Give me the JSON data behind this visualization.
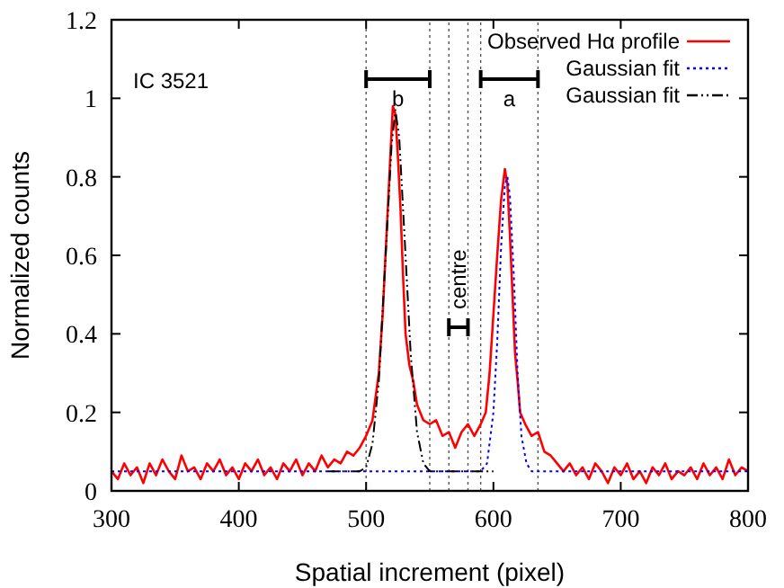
{
  "chart_data": {
    "type": "line",
    "xlabel": "Spatial increment (pixel)",
    "ylabel": "Normalized counts",
    "xlim": [
      300,
      800
    ],
    "xticks": [
      300,
      400,
      500,
      600,
      700,
      800
    ],
    "ylim": [
      0,
      1.2
    ],
    "yticks": [
      0,
      0.2,
      0.4,
      0.6,
      0.8,
      1,
      1.2
    ],
    "legend": "top right",
    "grid": false,
    "series": [
      {
        "name": "Observed Hα profile",
        "color": "#ff0000",
        "line_style": "solid",
        "x": [
          300,
          305,
          310,
          315,
          320,
          325,
          330,
          335,
          340,
          345,
          350,
          355,
          360,
          365,
          370,
          375,
          380,
          385,
          390,
          395,
          400,
          405,
          410,
          415,
          420,
          425,
          430,
          435,
          440,
          445,
          450,
          455,
          460,
          465,
          470,
          475,
          480,
          485,
          490,
          495,
          500,
          505,
          510,
          513,
          516,
          519,
          521,
          523,
          525,
          527,
          529,
          531,
          534,
          537,
          540,
          545,
          550,
          555,
          560,
          565,
          570,
          575,
          580,
          585,
          590,
          594,
          597,
          600,
          603,
          606,
          609,
          611,
          613,
          615,
          617,
          619,
          621,
          625,
          630,
          635,
          640,
          645,
          650,
          655,
          660,
          665,
          670,
          675,
          680,
          685,
          690,
          695,
          700,
          705,
          710,
          715,
          720,
          725,
          730,
          735,
          740,
          745,
          750,
          755,
          760,
          765,
          770,
          775,
          780,
          785,
          790,
          795,
          800
        ],
        "values": [
          0.05,
          0.03,
          0.07,
          0.04,
          0.06,
          0.02,
          0.07,
          0.04,
          0.08,
          0.05,
          0.03,
          0.09,
          0.05,
          0.06,
          0.03,
          0.07,
          0.05,
          0.08,
          0.04,
          0.06,
          0.03,
          0.07,
          0.05,
          0.08,
          0.04,
          0.06,
          0.03,
          0.07,
          0.05,
          0.08,
          0.04,
          0.07,
          0.05,
          0.09,
          0.06,
          0.08,
          0.07,
          0.1,
          0.09,
          0.11,
          0.14,
          0.18,
          0.3,
          0.45,
          0.65,
          0.85,
          0.98,
          0.96,
          0.85,
          0.72,
          0.55,
          0.4,
          0.32,
          0.28,
          0.22,
          0.18,
          0.17,
          0.18,
          0.14,
          0.15,
          0.11,
          0.15,
          0.17,
          0.14,
          0.17,
          0.2,
          0.3,
          0.45,
          0.6,
          0.74,
          0.82,
          0.78,
          0.65,
          0.5,
          0.35,
          0.28,
          0.2,
          0.17,
          0.14,
          0.15,
          0.1,
          0.09,
          0.07,
          0.05,
          0.07,
          0.04,
          0.06,
          0.03,
          0.07,
          0.05,
          0.02,
          0.06,
          0.04,
          0.07,
          0.03,
          0.05,
          0.02,
          0.06,
          0.04,
          0.07,
          0.03,
          0.05,
          0.04,
          0.06,
          0.03,
          0.07,
          0.04,
          0.06,
          0.03,
          0.08,
          0.04,
          0.06,
          0.05
        ]
      },
      {
        "name": "Gaussian fit",
        "color": "#0000ff",
        "line_style": "dotted",
        "x": [
          300,
          590,
          595,
          600,
          603,
          606,
          609,
          611,
          613,
          616,
          619,
          622,
          626,
          630,
          800
        ],
        "values": [
          0.05,
          0.05,
          0.07,
          0.2,
          0.38,
          0.62,
          0.78,
          0.8,
          0.75,
          0.55,
          0.3,
          0.14,
          0.07,
          0.05,
          0.05
        ]
      },
      {
        "name": "Gaussian fit",
        "color": "#000000",
        "line_style": "dashdot",
        "x": [
          470,
          495,
          500,
          505,
          510,
          515,
          520,
          523,
          526,
          530,
          535,
          540,
          545,
          550,
          600
        ],
        "values": [
          0.05,
          0.05,
          0.06,
          0.12,
          0.28,
          0.58,
          0.88,
          0.97,
          0.9,
          0.66,
          0.35,
          0.15,
          0.07,
          0.05,
          0.05
        ]
      }
    ],
    "ref_lines": [
      {
        "axis": "x",
        "value": 500,
        "line_style": "dotted"
      },
      {
        "axis": "x",
        "value": 550,
        "line_style": "dotted"
      },
      {
        "axis": "x",
        "value": 565,
        "line_style": "dotted"
      },
      {
        "axis": "x",
        "value": 580,
        "line_style": "dotted"
      },
      {
        "axis": "x",
        "value": 590,
        "line_style": "dotted"
      },
      {
        "axis": "x",
        "value": 635,
        "line_style": "dotted"
      }
    ],
    "annotations": [
      "IC 3521",
      "b",
      "a",
      "centre"
    ]
  }
}
